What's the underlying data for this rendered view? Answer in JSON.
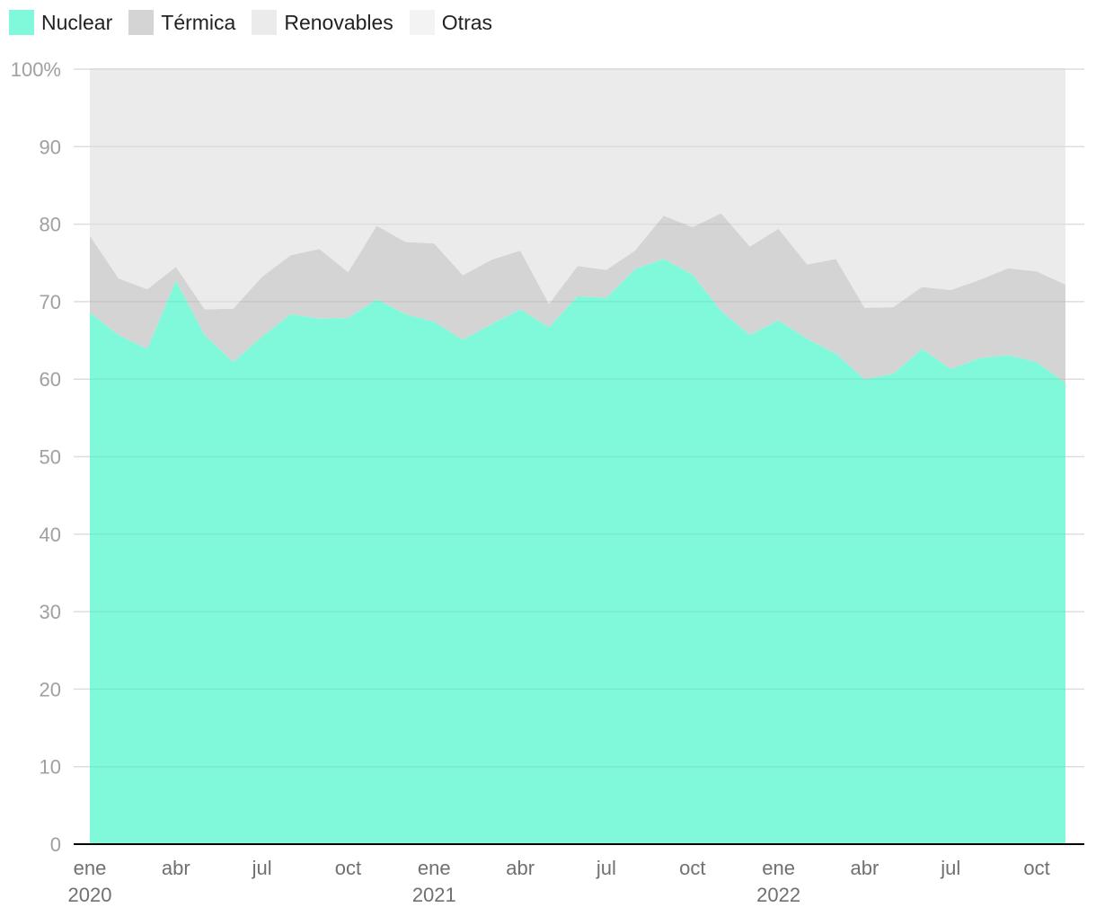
{
  "chart_data": {
    "type": "area",
    "stacked": "percent",
    "title": "",
    "xlabel": "",
    "ylabel": "",
    "ylim": [
      0,
      100
    ],
    "y_ticks": [
      0,
      10,
      20,
      30,
      40,
      50,
      60,
      70,
      80,
      90
    ],
    "y_top_label": "100%",
    "grid": true,
    "legend_position": "top-left",
    "x_tick_labels": [
      {
        "month": "ene",
        "year": "2020",
        "index": 0
      },
      {
        "month": "abr",
        "year": "",
        "index": 3
      },
      {
        "month": "jul",
        "year": "",
        "index": 6
      },
      {
        "month": "oct",
        "year": "",
        "index": 9
      },
      {
        "month": "ene",
        "year": "2021",
        "index": 12
      },
      {
        "month": "abr",
        "year": "",
        "index": 15
      },
      {
        "month": "jul",
        "year": "",
        "index": 18
      },
      {
        "month": "oct",
        "year": "",
        "index": 21
      },
      {
        "month": "ene",
        "year": "2022",
        "index": 24
      },
      {
        "month": "abr",
        "year": "",
        "index": 27
      },
      {
        "month": "jul",
        "year": "",
        "index": 30
      },
      {
        "month": "oct",
        "year": "",
        "index": 33
      }
    ],
    "x": [
      "2020-01",
      "2020-02",
      "2020-03",
      "2020-04",
      "2020-05",
      "2020-06",
      "2020-07",
      "2020-08",
      "2020-09",
      "2020-10",
      "2020-11",
      "2020-12",
      "2021-01",
      "2021-02",
      "2021-03",
      "2021-04",
      "2021-05",
      "2021-06",
      "2021-07",
      "2021-08",
      "2021-09",
      "2021-10",
      "2021-11",
      "2021-12",
      "2022-01",
      "2022-02",
      "2022-03",
      "2022-04",
      "2022-05",
      "2022-06",
      "2022-07",
      "2022-08",
      "2022-09",
      "2022-10",
      "2022-11"
    ],
    "series": [
      {
        "name": "Nuclear",
        "color": "#80f9da",
        "values": [
          68.6,
          65.7,
          63.9,
          72.7,
          65.7,
          62.2,
          65.5,
          68.4,
          67.8,
          67.9,
          70.3,
          68.4,
          67.4,
          65.1,
          67.1,
          69.0,
          66.7,
          70.7,
          70.5,
          74.2,
          75.5,
          73.5,
          68.8,
          65.7,
          67.6,
          65.2,
          63.3,
          60.0,
          60.7,
          63.9,
          61.3,
          62.7,
          63.1,
          62.2,
          59.5
        ]
      },
      {
        "name": "Térmica",
        "color": "#d4d4d4",
        "values": [
          9.9,
          7.3,
          7.7,
          1.8,
          3.3,
          6.9,
          7.7,
          7.6,
          9.0,
          5.9,
          9.5,
          9.3,
          10.1,
          8.3,
          8.3,
          7.6,
          3.0,
          3.9,
          3.6,
          2.4,
          5.6,
          6.1,
          12.6,
          11.4,
          11.8,
          9.6,
          12.2,
          9.2,
          8.6,
          8.0,
          10.2,
          10.1,
          11.2,
          11.7,
          12.7
        ]
      },
      {
        "name": "Renovables",
        "color": "#ebebeb",
        "values": [
          21.5,
          27.0,
          28.4,
          25.5,
          31.0,
          30.9,
          26.8,
          24.0,
          23.2,
          26.2,
          20.2,
          22.3,
          22.5,
          26.6,
          24.6,
          23.4,
          30.3,
          25.4,
          25.9,
          23.4,
          18.9,
          20.4,
          18.6,
          22.9,
          20.6,
          25.2,
          24.5,
          30.8,
          30.7,
          28.1,
          28.5,
          27.2,
          25.7,
          26.1,
          27.8
        ]
      },
      {
        "name": "Otras",
        "color": "#f3f3f3",
        "values": [
          0,
          0,
          0,
          0,
          0,
          0,
          0,
          0,
          0,
          0,
          0,
          0,
          0,
          0,
          0,
          0,
          0,
          0,
          0,
          0,
          0,
          0,
          0,
          0,
          0,
          0,
          0,
          0,
          0,
          0,
          0,
          0,
          0,
          0,
          0
        ]
      }
    ]
  }
}
